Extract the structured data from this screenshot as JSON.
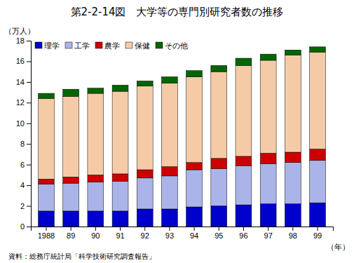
{
  "chart_data": {
    "type": "bar",
    "stacked": true,
    "title": "第2-2-14図　大学等の専門別研究者数の推移",
    "ylabel": "（万人）",
    "xlabel": "（年）",
    "annotations": [
      "資料：総務庁統計局「科学技術研究調査報告」"
    ],
    "categories": [
      "1988",
      "89",
      "90",
      "91",
      "92",
      "93",
      "94",
      "95",
      "96",
      "97",
      "98",
      "99"
    ],
    "series": [
      {
        "name": "理学",
        "color": "#0000cc",
        "values": [
          1.5,
          1.5,
          1.5,
          1.5,
          1.7,
          1.7,
          1.9,
          2.0,
          2.1,
          2.2,
          2.2,
          2.3
        ]
      },
      {
        "name": "工学",
        "color": "#aab4e8",
        "values": [
          2.6,
          2.7,
          2.8,
          2.9,
          3.0,
          3.2,
          3.6,
          3.6,
          3.8,
          3.9,
          4.0,
          4.1
        ]
      },
      {
        "name": "農学",
        "color": "#cc0000",
        "values": [
          0.5,
          0.6,
          0.7,
          0.7,
          0.8,
          0.9,
          0.7,
          1.0,
          0.9,
          1.0,
          1.0,
          1.1
        ]
      },
      {
        "name": "保健",
        "color": "#f5cba7",
        "values": [
          7.8,
          7.8,
          7.9,
          8.0,
          8.1,
          8.1,
          8.3,
          8.4,
          8.8,
          9.0,
          9.4,
          9.4
        ]
      },
      {
        "name": "その他",
        "color": "#006600",
        "values": [
          0.5,
          0.7,
          0.5,
          0.6,
          0.5,
          0.6,
          0.6,
          0.6,
          0.7,
          0.6,
          0.5,
          0.5
        ]
      }
    ],
    "ylim": [
      0,
      18
    ],
    "yticks": [
      0,
      2,
      4,
      6,
      8,
      10,
      12,
      14,
      16,
      18
    ],
    "grid": false,
    "legend": "upper left"
  }
}
